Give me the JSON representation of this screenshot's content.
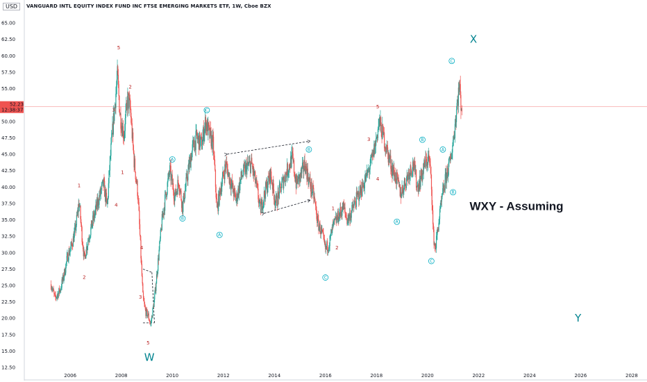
{
  "header": {
    "title": "VANGUARD INTL EQUITY INDEX FUND INC FTSE EMERGING MARKETS ETF, 1W, Cboe BZX",
    "currency": "USD"
  },
  "price_label": {
    "price": "52.23",
    "countdown": "12:38:37"
  },
  "chart_data": {
    "type": "candlestick",
    "title": "VANGUARD INTL EQUITY INDEX FUND INC FTSE EMERGING MARKETS ETF, 1W, Cboe BZX",
    "xlabel": "",
    "ylabel": "",
    "currency": "USD",
    "x_ticks": [
      "2006",
      "2008",
      "2010",
      "2012",
      "2014",
      "2016",
      "2018",
      "2020",
      "2022",
      "2024",
      "2026",
      "2028"
    ],
    "y_ticks": [
      "12.50",
      "15.00",
      "17.50",
      "20.00",
      "22.50",
      "25.00",
      "27.50",
      "30.00",
      "32.50",
      "35.00",
      "37.50",
      "40.00",
      "42.50",
      "45.00",
      "47.50",
      "50.00",
      "52.50",
      "55.00",
      "57.50",
      "60.00",
      "62.50",
      "65.00"
    ],
    "xlim": [
      2004.2,
      2028.6
    ],
    "ylim": [
      10.5,
      68.5
    ],
    "last_price": 52.23,
    "grid": false,
    "colors": {
      "up": "#26a69a",
      "down": "#ef5350",
      "wave_primary": "#b71c1c",
      "wave_corrective": "#00acc1",
      "wave_cycle": "#00838f"
    },
    "price_path": [
      [
        2005.25,
        25.2
      ],
      [
        2005.4,
        23.0
      ],
      [
        2005.6,
        24.3
      ],
      [
        2005.75,
        26.5
      ],
      [
        2005.9,
        29.5
      ],
      [
        2006.05,
        31.0
      ],
      [
        2006.2,
        33.5
      ],
      [
        2006.35,
        37.8
      ],
      [
        2006.45,
        33.0
      ],
      [
        2006.55,
        29.0
      ],
      [
        2006.7,
        32.0
      ],
      [
        2006.9,
        35.0
      ],
      [
        2007.1,
        38.0
      ],
      [
        2007.3,
        40.5
      ],
      [
        2007.45,
        37.0
      ],
      [
        2007.55,
        43.5
      ],
      [
        2007.7,
        50.5
      ],
      [
        2007.85,
        57.0
      ],
      [
        2007.95,
        51.0
      ],
      [
        2008.1,
        48.0
      ],
      [
        2008.25,
        53.5
      ],
      [
        2008.35,
        52.0
      ],
      [
        2008.5,
        44.0
      ],
      [
        2008.65,
        39.0
      ],
      [
        2008.75,
        31.0
      ],
      [
        2008.85,
        23.0
      ],
      [
        2008.95,
        21.0
      ],
      [
        2009.05,
        20.5
      ],
      [
        2009.15,
        19.0
      ],
      [
        2009.3,
        23.0
      ],
      [
        2009.45,
        29.0
      ],
      [
        2009.6,
        35.0
      ],
      [
        2009.75,
        39.0
      ],
      [
        2009.9,
        42.5
      ],
      [
        2010.1,
        38.5
      ],
      [
        2010.25,
        41.0
      ],
      [
        2010.4,
        37.0
      ],
      [
        2010.6,
        42.0
      ],
      [
        2010.8,
        46.0
      ],
      [
        2010.95,
        47.5
      ],
      [
        2011.15,
        46.5
      ],
      [
        2011.3,
        50.0
      ],
      [
        2011.45,
        48.0
      ],
      [
        2011.6,
        46.5
      ],
      [
        2011.75,
        36.5
      ],
      [
        2011.9,
        40.0
      ],
      [
        2012.1,
        43.5
      ],
      [
        2012.3,
        40.5
      ],
      [
        2012.5,
        38.0
      ],
      [
        2012.7,
        41.5
      ],
      [
        2012.9,
        43.0
      ],
      [
        2013.1,
        43.5
      ],
      [
        2013.3,
        40.0
      ],
      [
        2013.45,
        36.5
      ],
      [
        2013.65,
        39.5
      ],
      [
        2013.85,
        42.0
      ],
      [
        2014.05,
        37.5
      ],
      [
        2014.3,
        40.5
      ],
      [
        2014.55,
        43.0
      ],
      [
        2014.7,
        44.5
      ],
      [
        2014.85,
        40.5
      ],
      [
        2015.0,
        41.5
      ],
      [
        2015.2,
        43.5
      ],
      [
        2015.35,
        41.0
      ],
      [
        2015.55,
        38.5
      ],
      [
        2015.7,
        34.5
      ],
      [
        2015.85,
        33.0
      ],
      [
        2016.0,
        30.5
      ],
      [
        2016.15,
        31.5
      ],
      [
        2016.3,
        34.0
      ],
      [
        2016.5,
        35.5
      ],
      [
        2016.7,
        37.0
      ],
      [
        2016.85,
        35.0
      ],
      [
        2017.0,
        36.0
      ],
      [
        2017.2,
        38.0
      ],
      [
        2017.45,
        40.0
      ],
      [
        2017.65,
        42.0
      ],
      [
        2017.85,
        44.5
      ],
      [
        2018.0,
        47.5
      ],
      [
        2018.1,
        50.0
      ],
      [
        2018.25,
        48.0
      ],
      [
        2018.45,
        45.0
      ],
      [
        2018.6,
        43.0
      ],
      [
        2018.8,
        41.0
      ],
      [
        2018.95,
        39.0
      ],
      [
        2019.1,
        40.5
      ],
      [
        2019.3,
        42.5
      ],
      [
        2019.45,
        43.5
      ],
      [
        2019.6,
        40.0
      ],
      [
        2019.75,
        41.5
      ],
      [
        2019.9,
        43.5
      ],
      [
        2020.05,
        44.5
      ],
      [
        2020.15,
        41.0
      ],
      [
        2020.22,
        33.0
      ],
      [
        2020.3,
        30.5
      ],
      [
        2020.45,
        35.0
      ],
      [
        2020.6,
        39.0
      ],
      [
        2020.75,
        42.0
      ],
      [
        2020.9,
        44.0
      ],
      [
        2021.05,
        48.5
      ],
      [
        2021.15,
        52.5
      ],
      [
        2021.25,
        55.5
      ],
      [
        2021.3,
        53.0
      ],
      [
        2021.35,
        52.2
      ]
    ],
    "price_line": {
      "value": 52.23,
      "color": "#ef5350"
    },
    "trendlines": [
      {
        "from": [
          2012.15,
          45.0
        ],
        "to": [
          2015.4,
          47.0
        ]
      },
      {
        "from": [
          2013.6,
          36.0
        ],
        "to": [
          2015.4,
          38.0
        ]
      }
    ],
    "guide_lines": [
      {
        "from": [
          2008.85,
          27.5
        ],
        "to": [
          2009.2,
          27.0
        ]
      },
      {
        "from": [
          2008.85,
          19.3
        ],
        "to": [
          2009.3,
          19.3
        ]
      },
      {
        "from": [
          2009.2,
          27.0
        ],
        "to": [
          2009.3,
          19.3
        ]
      }
    ],
    "wave_labels": [
      {
        "text": "1",
        "x": 2006.35,
        "y": 40.0,
        "style": "wave"
      },
      {
        "text": "2",
        "x": 2006.55,
        "y": 26.0,
        "style": "wave"
      },
      {
        "text": "3",
        "x": 2007.7,
        "y": 51.5,
        "style": "wave"
      },
      {
        "text": "4",
        "x": 2007.8,
        "y": 37.0,
        "style": "wave"
      },
      {
        "text": "5",
        "x": 2007.9,
        "y": 61.0,
        "style": "wave"
      },
      {
        "text": "2",
        "x": 2008.35,
        "y": 55.0,
        "style": "wave"
      },
      {
        "text": "1",
        "x": 2008.05,
        "y": 42.0,
        "style": "wave"
      },
      {
        "text": "4",
        "x": 2008.8,
        "y": 30.5,
        "style": "wave"
      },
      {
        "text": "3",
        "x": 2008.75,
        "y": 23.0,
        "style": "wave"
      },
      {
        "text": "5",
        "x": 2009.05,
        "y": 16.0,
        "style": "wave"
      },
      {
        "text": "A",
        "x": 2010.0,
        "y": 44.0,
        "style": "cwave"
      },
      {
        "text": "B",
        "x": 2010.4,
        "y": 35.0,
        "style": "cwave"
      },
      {
        "text": "C",
        "x": 2011.35,
        "y": 51.5,
        "style": "cwave"
      },
      {
        "text": "A",
        "x": 2011.85,
        "y": 32.5,
        "style": "cwave"
      },
      {
        "text": "B",
        "x": 2015.35,
        "y": 45.5,
        "style": "cwave"
      },
      {
        "text": "C",
        "x": 2016.0,
        "y": 26.0,
        "style": "cwave"
      },
      {
        "text": "1",
        "x": 2016.3,
        "y": 36.5,
        "style": "wave"
      },
      {
        "text": "2",
        "x": 2016.45,
        "y": 30.5,
        "style": "wave"
      },
      {
        "text": "3",
        "x": 2017.7,
        "y": 47.0,
        "style": "wave"
      },
      {
        "text": "4",
        "x": 2018.05,
        "y": 41.0,
        "style": "wave"
      },
      {
        "text": "5",
        "x": 2018.05,
        "y": 52.0,
        "style": "wave"
      },
      {
        "text": "A",
        "x": 2018.8,
        "y": 34.5,
        "style": "cwave"
      },
      {
        "text": "B",
        "x": 2019.8,
        "y": 47.0,
        "style": "cwave"
      },
      {
        "text": "C",
        "x": 2020.15,
        "y": 28.5,
        "style": "cwave"
      },
      {
        "text": "A",
        "x": 2020.6,
        "y": 45.5,
        "style": "cwave"
      },
      {
        "text": "B",
        "x": 2021.0,
        "y": 39.0,
        "style": "cwave"
      },
      {
        "text": "C",
        "x": 2020.95,
        "y": 59.0,
        "style": "cwave"
      },
      {
        "text": "W",
        "x": 2009.1,
        "y": 13.5,
        "style": "big"
      },
      {
        "text": "X",
        "x": 2021.8,
        "y": 62.0,
        "style": "big"
      },
      {
        "text": "Y",
        "x": 2025.9,
        "y": 19.5,
        "style": "big"
      }
    ],
    "annotations": [
      {
        "text": "WXY - Assuming",
        "x": 2021.65,
        "y": 36.5
      }
    ]
  }
}
